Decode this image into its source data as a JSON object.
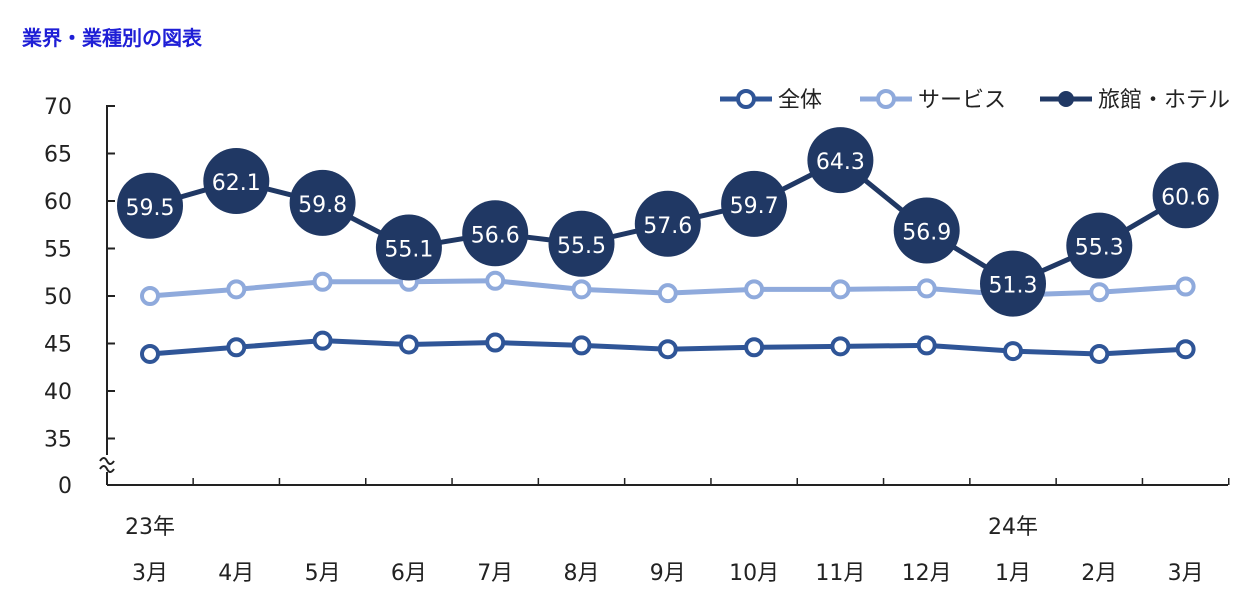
{
  "title": "業界・業種別の図表",
  "chart_data": {
    "type": "line",
    "x": [
      "3月",
      "4月",
      "5月",
      "6月",
      "7月",
      "8月",
      "9月",
      "10月",
      "11月",
      "12月",
      "1月",
      "2月",
      "3月"
    ],
    "year_labels": [
      {
        "index": 0,
        "text": "23年"
      },
      {
        "index": 10,
        "text": "24年"
      }
    ],
    "yticks": [
      0,
      35,
      40,
      45,
      50,
      55,
      60,
      65,
      70
    ],
    "axis_break": true,
    "ylim": [
      30,
      70
    ],
    "legend_position": "top-right",
    "series": [
      {
        "name": "全体",
        "color": "#2f5597",
        "marker": "hollow-circle",
        "values": [
          43.9,
          44.6,
          45.3,
          44.9,
          45.1,
          44.8,
          44.4,
          44.6,
          44.7,
          44.8,
          44.2,
          43.9,
          44.4
        ]
      },
      {
        "name": "サービス",
        "color": "#8faadc",
        "marker": "hollow-circle",
        "values": [
          50.0,
          50.7,
          51.5,
          51.5,
          51.6,
          50.7,
          50.3,
          50.7,
          50.7,
          50.8,
          50.1,
          50.4,
          51.0
        ]
      },
      {
        "name": "旅館・ホテル",
        "color": "#203864",
        "marker": "filled-circle-labeled",
        "values": [
          59.5,
          62.1,
          59.8,
          55.1,
          56.6,
          55.5,
          57.6,
          59.7,
          64.3,
          56.9,
          51.3,
          55.3,
          60.6
        ]
      }
    ]
  }
}
